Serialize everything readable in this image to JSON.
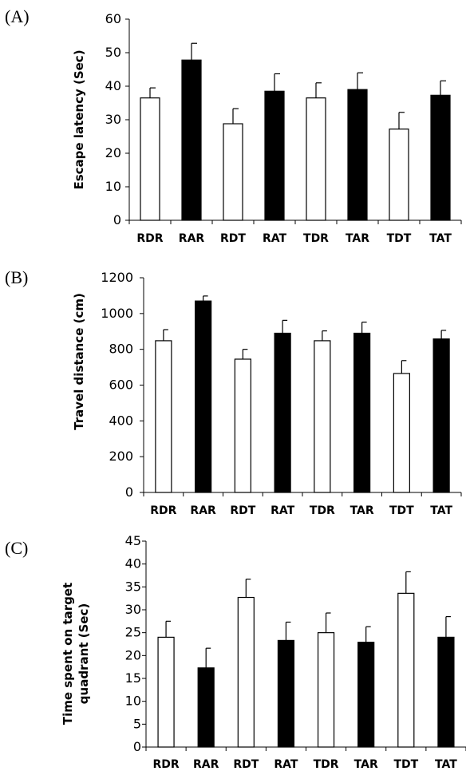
{
  "chart_data": [
    {
      "type": "bar",
      "panel_label": "(A)",
      "categories": [
        "RDR",
        "RAR",
        "RDT",
        "RAT",
        "TDR",
        "TAR",
        "TDT",
        "TAT"
      ],
      "values": [
        36.5,
        47.8,
        28.8,
        38.5,
        36.5,
        39,
        27.2,
        37.3
      ],
      "errors": [
        3,
        5,
        4.5,
        5.2,
        4.5,
        5,
        5,
        4.3
      ],
      "fills": [
        "#ffffff",
        "#000000",
        "#ffffff",
        "#000000",
        "#ffffff",
        "#000000",
        "#ffffff",
        "#000000"
      ],
      "ylabel": "Escape latency (Sec)",
      "ylim": [
        0,
        60
      ],
      "yticks": [
        0,
        10,
        20,
        30,
        40,
        50,
        60
      ],
      "grid": false
    },
    {
      "type": "bar",
      "panel_label": "(B)",
      "categories": [
        "RDR",
        "RAR",
        "RDT",
        "RAT",
        "TDR",
        "TAR",
        "TDT",
        "TAT"
      ],
      "values": [
        848,
        1070,
        745,
        890,
        848,
        890,
        665,
        858
      ],
      "errors": [
        62,
        28,
        55,
        72,
        55,
        62,
        72,
        48
      ],
      "fills": [
        "#ffffff",
        "#000000",
        "#ffffff",
        "#000000",
        "#ffffff",
        "#000000",
        "#ffffff",
        "#000000"
      ],
      "ylabel": "Travel distance (cm)",
      "ylim": [
        0,
        1200
      ],
      "yticks": [
        0,
        200,
        400,
        600,
        800,
        1000,
        1200
      ],
      "grid": false
    },
    {
      "type": "bar",
      "panel_label": "(C)",
      "categories": [
        "RDR",
        "RAR",
        "RDT",
        "RAT",
        "TDR",
        "TAR",
        "TDT",
        "TAT"
      ],
      "values": [
        24,
        17.3,
        32.7,
        23.3,
        25,
        22.9,
        33.6,
        24
      ],
      "errors": [
        3.5,
        4.3,
        4,
        4,
        4.3,
        3.4,
        4.7,
        4.5
      ],
      "fills": [
        "#ffffff",
        "#000000",
        "#ffffff",
        "#000000",
        "#ffffff",
        "#000000",
        "#ffffff",
        "#000000"
      ],
      "ylabel_lines": [
        "Time spent on target",
        "quadrant (Sec)"
      ],
      "ylim": [
        0,
        45
      ],
      "yticks": [
        0,
        5,
        10,
        15,
        20,
        25,
        30,
        35,
        40,
        45
      ],
      "grid": false
    }
  ]
}
